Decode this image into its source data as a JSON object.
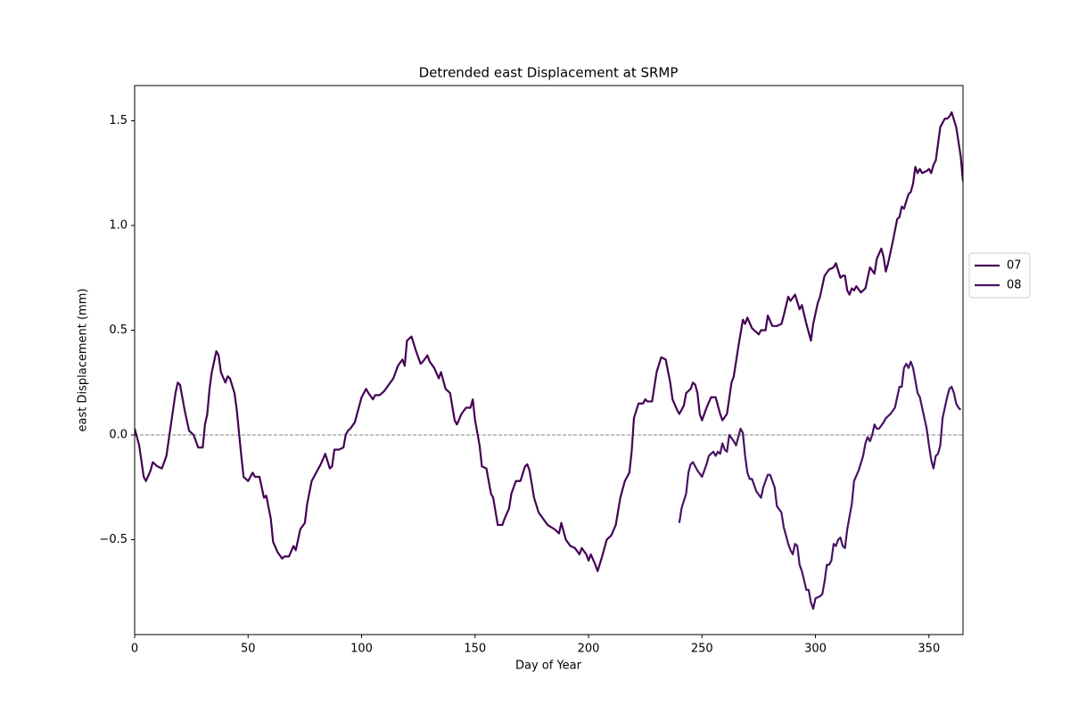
{
  "chart_data": {
    "type": "line",
    "title": "Detrended east Displacement at SRMP",
    "x_label": "Day of Year",
    "y_label": "east Displacement (mm)",
    "xlim": [
      0,
      365
    ],
    "xticks": [
      0,
      50,
      100,
      150,
      200,
      250,
      300,
      350
    ],
    "ylim": [
      -0.953,
      1.668
    ],
    "yticks": [
      {
        "value": -0.5,
        "label": "−0.5"
      },
      {
        "value": 0,
        "label": "0.0"
      },
      {
        "value": 0.5,
        "label": "0.5"
      },
      {
        "value": 1,
        "label": "1.0"
      },
      {
        "value": 1.5,
        "label": "1.5"
      }
    ],
    "reference_line": 0,
    "legend": "center left outside",
    "series": [
      {
        "name": "07",
        "color": "#440154",
        "x": [
          0,
          2,
          4,
          5,
          7,
          8,
          10,
          12,
          14,
          16,
          18,
          19,
          20,
          22,
          24,
          26,
          28,
          30,
          31,
          32,
          33,
          34,
          36,
          37,
          38,
          40,
          41,
          42,
          44,
          45,
          47,
          48,
          50,
          52,
          53,
          55,
          57,
          58,
          60,
          61,
          63,
          65,
          66,
          68,
          70,
          71,
          73,
          75,
          76,
          78,
          80,
          82,
          84,
          86,
          87,
          88,
          90,
          92,
          93,
          94,
          95,
          97,
          99,
          100,
          102,
          103,
          105,
          106,
          108,
          110,
          112,
          114,
          116,
          118,
          119,
          120,
          122,
          124,
          126,
          127,
          129,
          130,
          132,
          134,
          135,
          137,
          139,
          141,
          142,
          144,
          146,
          148,
          149,
          150,
          152,
          153,
          155,
          157,
          158,
          160,
          162,
          163,
          165,
          166,
          168,
          170,
          172,
          173,
          174,
          176,
          178,
          180,
          182,
          185,
          187,
          188,
          190,
          192,
          194,
          196,
          197,
          199,
          200,
          201,
          203,
          204,
          206,
          208,
          210,
          212,
          214,
          216,
          218,
          219,
          220,
          222,
          224,
          225,
          226,
          228,
          230,
          232,
          234,
          236,
          237,
          239,
          240,
          242,
          243,
          245,
          246,
          247,
          248,
          249,
          250,
          252,
          254,
          256,
          258,
          259,
          261,
          263,
          264,
          266,
          268,
          269,
          270,
          272,
          274,
          275,
          276,
          278,
          279,
          281,
          283,
          285,
          286,
          288,
          289,
          291,
          293,
          294,
          296,
          298,
          299,
          301,
          302,
          304,
          306,
          308,
          309,
          311,
          312,
          313,
          314,
          315,
          316,
          317,
          318,
          320,
          322,
          324,
          326,
          327,
          329,
          330,
          331,
          332,
          334,
          336,
          337,
          338,
          339,
          341,
          342,
          343,
          344,
          345,
          346,
          347,
          349,
          350,
          351,
          352,
          353,
          355,
          356,
          357,
          358,
          359,
          360,
          362,
          364,
          365
        ],
        "values": [
          0.03,
          -0.05,
          -0.2,
          -0.22,
          -0.17,
          -0.13,
          -0.15,
          -0.16,
          -0.1,
          0.05,
          0.2,
          0.25,
          0.24,
          0.12,
          0.02,
          0.0,
          -0.06,
          -0.06,
          0.05,
          0.1,
          0.22,
          0.3,
          0.4,
          0.38,
          0.3,
          0.25,
          0.28,
          0.27,
          0.2,
          0.12,
          -0.1,
          -0.2,
          -0.22,
          -0.18,
          -0.2,
          -0.2,
          -0.3,
          -0.29,
          -0.4,
          -0.51,
          -0.56,
          -0.59,
          -0.58,
          -0.58,
          -0.53,
          -0.55,
          -0.45,
          -0.42,
          -0.33,
          -0.22,
          -0.18,
          -0.14,
          -0.09,
          -0.16,
          -0.15,
          -0.07,
          -0.07,
          -0.06,
          0.0,
          0.02,
          0.03,
          0.06,
          0.14,
          0.18,
          0.22,
          0.2,
          0.17,
          0.19,
          0.19,
          0.21,
          0.24,
          0.27,
          0.33,
          0.36,
          0.33,
          0.45,
          0.47,
          0.4,
          0.34,
          0.35,
          0.38,
          0.35,
          0.32,
          0.27,
          0.3,
          0.22,
          0.2,
          0.07,
          0.05,
          0.1,
          0.13,
          0.13,
          0.17,
          0.07,
          -0.05,
          -0.15,
          -0.16,
          -0.28,
          -0.3,
          -0.43,
          -0.43,
          -0.4,
          -0.35,
          -0.28,
          -0.22,
          -0.22,
          -0.15,
          -0.14,
          -0.17,
          -0.3,
          -0.37,
          -0.4,
          -0.43,
          -0.45,
          -0.47,
          -0.42,
          -0.5,
          -0.53,
          -0.54,
          -0.57,
          -0.54,
          -0.57,
          -0.6,
          -0.57,
          -0.62,
          -0.65,
          -0.58,
          -0.5,
          -0.48,
          -0.43,
          -0.3,
          -0.22,
          -0.18,
          -0.08,
          0.08,
          0.15,
          0.15,
          0.17,
          0.16,
          0.16,
          0.3,
          0.37,
          0.36,
          0.25,
          0.17,
          0.12,
          0.1,
          0.14,
          0.2,
          0.22,
          0.25,
          0.24,
          0.2,
          0.1,
          0.07,
          0.13,
          0.18,
          0.18,
          0.1,
          0.07,
          0.1,
          0.25,
          0.28,
          0.42,
          0.55,
          0.53,
          0.56,
          0.51,
          0.49,
          0.48,
          0.5,
          0.5,
          0.57,
          0.52,
          0.52,
          0.53,
          0.57,
          0.66,
          0.64,
          0.67,
          0.6,
          0.62,
          0.53,
          0.45,
          0.53,
          0.63,
          0.66,
          0.76,
          0.79,
          0.8,
          0.82,
          0.75,
          0.76,
          0.76,
          0.69,
          0.67,
          0.7,
          0.69,
          0.71,
          0.68,
          0.7,
          0.8,
          0.77,
          0.84,
          0.89,
          0.85,
          0.78,
          0.82,
          0.92,
          1.03,
          1.04,
          1.09,
          1.08,
          1.15,
          1.16,
          1.2,
          1.28,
          1.25,
          1.27,
          1.25,
          1.26,
          1.27,
          1.25,
          1.29,
          1.31,
          1.47,
          1.49,
          1.51,
          1.51,
          1.52,
          1.54,
          1.47,
          1.33,
          1.21
        ]
      },
      {
        "name": "08",
        "color": "#471365",
        "x": [
          240,
          241,
          243,
          244,
          245,
          246,
          248,
          250,
          251,
          252,
          253,
          255,
          256,
          257,
          258,
          259,
          260,
          261,
          262,
          264,
          265,
          267,
          268,
          269,
          270,
          271,
          272,
          274,
          276,
          277,
          279,
          280,
          282,
          283,
          285,
          286,
          288,
          289,
          290,
          291,
          292,
          293,
          294,
          296,
          297,
          298,
          299,
          300,
          302,
          303,
          304,
          305,
          306,
          307,
          308,
          309,
          310,
          311,
          312,
          313,
          314,
          316,
          317,
          319,
          321,
          322,
          323,
          324,
          325,
          326,
          327,
          328,
          330,
          331,
          333,
          335,
          337,
          338,
          339,
          340,
          341,
          342,
          343,
          345,
          346,
          348,
          349,
          350,
          351,
          352,
          353,
          354,
          355,
          356,
          357,
          358,
          359,
          360,
          361,
          362,
          363,
          364
        ],
        "values": [
          -0.42,
          -0.35,
          -0.28,
          -0.18,
          -0.14,
          -0.13,
          -0.17,
          -0.2,
          -0.17,
          -0.14,
          -0.1,
          -0.08,
          -0.1,
          -0.08,
          -0.09,
          -0.04,
          -0.07,
          -0.08,
          0.0,
          -0.03,
          -0.05,
          0.03,
          0.01,
          -0.1,
          -0.18,
          -0.21,
          -0.21,
          -0.27,
          -0.3,
          -0.25,
          -0.19,
          -0.19,
          -0.25,
          -0.34,
          -0.37,
          -0.44,
          -0.52,
          -0.55,
          -0.57,
          -0.52,
          -0.53,
          -0.62,
          -0.65,
          -0.74,
          -0.74,
          -0.8,
          -0.83,
          -0.78,
          -0.77,
          -0.76,
          -0.7,
          -0.62,
          -0.62,
          -0.6,
          -0.52,
          -0.53,
          -0.5,
          -0.49,
          -0.53,
          -0.54,
          -0.45,
          -0.33,
          -0.22,
          -0.17,
          -0.1,
          -0.04,
          -0.01,
          -0.03,
          0.0,
          0.05,
          0.03,
          0.03,
          0.06,
          0.08,
          0.1,
          0.13,
          0.23,
          0.23,
          0.32,
          0.34,
          0.32,
          0.35,
          0.32,
          0.2,
          0.18,
          0.08,
          0.03,
          -0.05,
          -0.12,
          -0.16,
          -0.1,
          -0.09,
          -0.05,
          0.08,
          0.13,
          0.18,
          0.22,
          0.23,
          0.2,
          0.15,
          0.13,
          0.12
        ]
      }
    ]
  }
}
